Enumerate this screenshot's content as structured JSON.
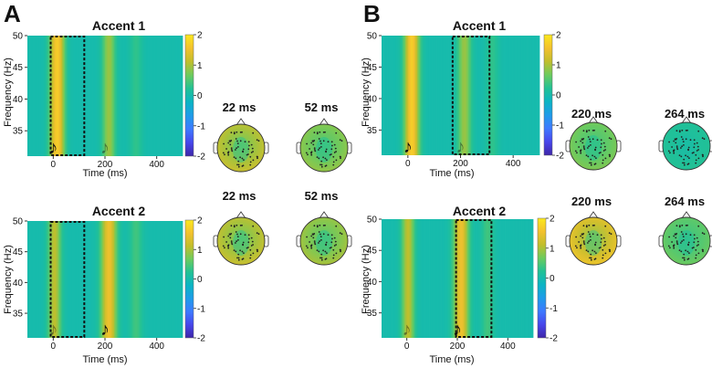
{
  "panels": [
    {
      "letter": "A"
    },
    {
      "letter": "B"
    }
  ],
  "chart_data": [
    {
      "type": "heatmap",
      "panel": "A",
      "title": "Accent 1",
      "xlabel": "Time (ms)",
      "ylabel": "Frequency (Hz)",
      "xlim": [
        -100,
        500
      ],
      "ylim": [
        31,
        50
      ],
      "xticks": [
        "0",
        "200",
        "400"
      ],
      "yticks": [
        "35",
        "40",
        "45",
        "50"
      ],
      "colorbar": {
        "min": -2,
        "max": 2,
        "ticks": [
          "2",
          "1",
          "0",
          "-1",
          "-2"
        ]
      },
      "highlight_window_ms": [
        -10,
        120
      ],
      "note_onsets_ms": [
        {
          "t": 0,
          "emphasis": "dark"
        },
        {
          "t": 200,
          "emphasis": "faint"
        }
      ],
      "peaks": [
        {
          "t": 15,
          "amp": 1.7,
          "w": 28
        },
        {
          "t": 215,
          "amp": 0.9,
          "w": 25
        },
        {
          "t": 320,
          "amp": 0.3,
          "w": 25
        }
      ],
      "topomaps": [
        {
          "label": "22 ms",
          "level": 1.1
        },
        {
          "label": "52 ms",
          "level": 0.8
        }
      ]
    },
    {
      "type": "heatmap",
      "panel": "A",
      "title": "Accent 2",
      "xlabel": "Time (ms)",
      "ylabel": "Frequency (Hz)",
      "xlim": [
        -100,
        500
      ],
      "ylim": [
        31,
        50
      ],
      "xticks": [
        "0",
        "200",
        "400"
      ],
      "yticks": [
        "35",
        "40",
        "45",
        "50"
      ],
      "colorbar": {
        "min": -2,
        "max": 2,
        "ticks": [
          "2",
          "1",
          "0",
          "-1",
          "-2"
        ]
      },
      "highlight_window_ms": [
        -10,
        120
      ],
      "note_onsets_ms": [
        {
          "t": 0,
          "emphasis": "faint"
        },
        {
          "t": 200,
          "emphasis": "dark"
        }
      ],
      "peaks": [
        {
          "t": 5,
          "amp": 1.1,
          "w": 25
        },
        {
          "t": 215,
          "amp": 1.5,
          "w": 30
        },
        {
          "t": 320,
          "amp": 0.4,
          "w": 25
        }
      ],
      "topomaps": [
        {
          "label": "22 ms",
          "level": 1.1
        },
        {
          "label": "52 ms",
          "level": 0.9
        }
      ]
    },
    {
      "type": "heatmap",
      "panel": "B",
      "title": "Accent 1",
      "xlabel": "Time (ms)",
      "ylabel": "Frequency (Hz)",
      "xlim": [
        -100,
        500
      ],
      "ylim": [
        31,
        50
      ],
      "xticks": [
        "0",
        "200",
        "400"
      ],
      "yticks": [
        "35",
        "40",
        "45",
        "50"
      ],
      "colorbar": {
        "min": -2,
        "max": 2,
        "ticks": [
          "2",
          "1",
          "0",
          "-1",
          "-2"
        ]
      },
      "highlight_window_ms": [
        170,
        310
      ],
      "note_onsets_ms": [
        {
          "t": 0,
          "emphasis": "dark"
        },
        {
          "t": 200,
          "emphasis": "faint"
        }
      ],
      "peaks": [
        {
          "t": 15,
          "amp": 1.7,
          "w": 28
        },
        {
          "t": 215,
          "amp": 0.9,
          "w": 25
        },
        {
          "t": 320,
          "amp": 0.3,
          "w": 25
        }
      ],
      "topomaps": [
        {
          "label": "220 ms",
          "level": 0.7
        },
        {
          "label": "264 ms",
          "level": 0.2
        }
      ]
    },
    {
      "type": "heatmap",
      "panel": "B",
      "title": "Accent 2",
      "xlabel": "Time (ms)",
      "ylabel": "Frequency (Hz)",
      "xlim": [
        -100,
        500
      ],
      "ylim": [
        31,
        50
      ],
      "xticks": [
        "0",
        "200",
        "400"
      ],
      "yticks": [
        "35",
        "40",
        "45",
        "50"
      ],
      "colorbar": {
        "min": -2,
        "max": 2,
        "ticks": [
          "2",
          "1",
          "0",
          "-1",
          "-2"
        ]
      },
      "highlight_window_ms": [
        195,
        335
      ],
      "note_onsets_ms": [
        {
          "t": 0,
          "emphasis": "faint"
        },
        {
          "t": 200,
          "emphasis": "dark"
        }
      ],
      "peaks": [
        {
          "t": 5,
          "amp": 1.1,
          "w": 25
        },
        {
          "t": 215,
          "amp": 1.5,
          "w": 30
        },
        {
          "t": 320,
          "amp": 0.4,
          "w": 25
        }
      ],
      "topomaps": [
        {
          "label": "220 ms",
          "level": 1.4
        },
        {
          "label": "264 ms",
          "level": 0.6
        }
      ]
    }
  ],
  "note_glyph": "♪",
  "colormap": [
    "#3e26a8",
    "#4746eb",
    "#3e79ff",
    "#1f9be9",
    "#0bb4c4",
    "#22c195",
    "#6ccb5e",
    "#c1be2c",
    "#f3c12e",
    "#fbe81d"
  ]
}
